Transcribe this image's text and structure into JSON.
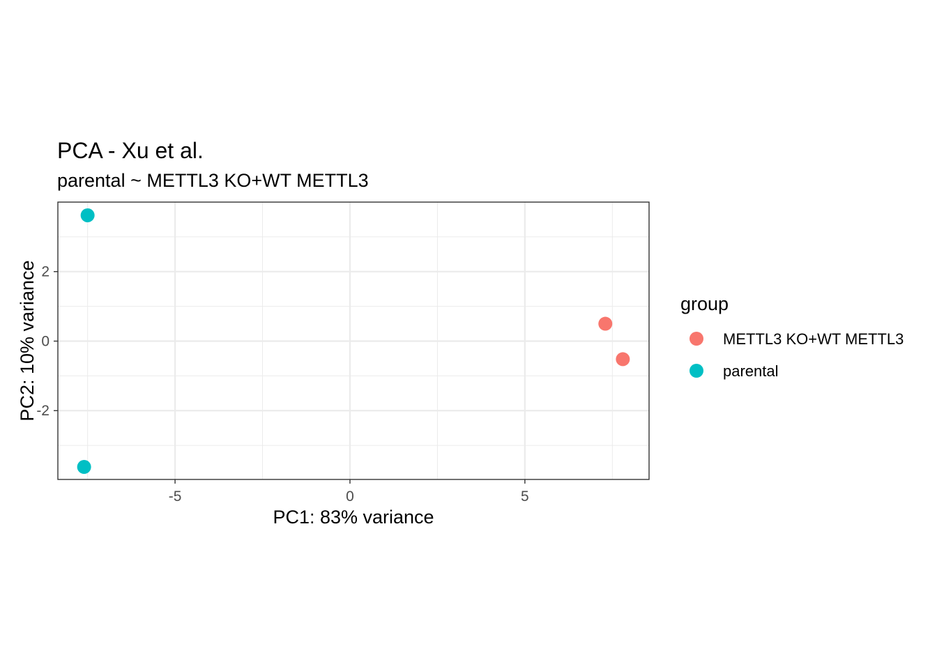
{
  "chart_data": {
    "type": "scatter",
    "title": "PCA - Xu et al.",
    "subtitle": "parental ~ METTL3 KO+WT METTL3",
    "xlabel": "PC1: 83% variance",
    "ylabel": "PC2: 10% variance",
    "xlim": [
      -8.35,
      8.55
    ],
    "ylim": [
      -3.98,
      4.0
    ],
    "x_ticks": [
      -5,
      0,
      5
    ],
    "y_ticks": [
      -2,
      0,
      2
    ],
    "x_tick_labels": [
      "-5",
      "0",
      "5"
    ],
    "y_tick_labels": [
      "-2",
      "0",
      "2"
    ],
    "grid": true,
    "legend": {
      "title": "group",
      "placement": "right"
    },
    "series": [
      {
        "name": "METTL3 KO+WT METTL3",
        "color": "#F8766D",
        "points": [
          {
            "x": 7.3,
            "y": 0.5
          },
          {
            "x": 7.8,
            "y": -0.52
          }
        ]
      },
      {
        "name": "parental",
        "color": "#00BFC4",
        "points": [
          {
            "x": -7.5,
            "y": 3.62
          },
          {
            "x": -7.6,
            "y": -3.62
          }
        ]
      }
    ]
  }
}
